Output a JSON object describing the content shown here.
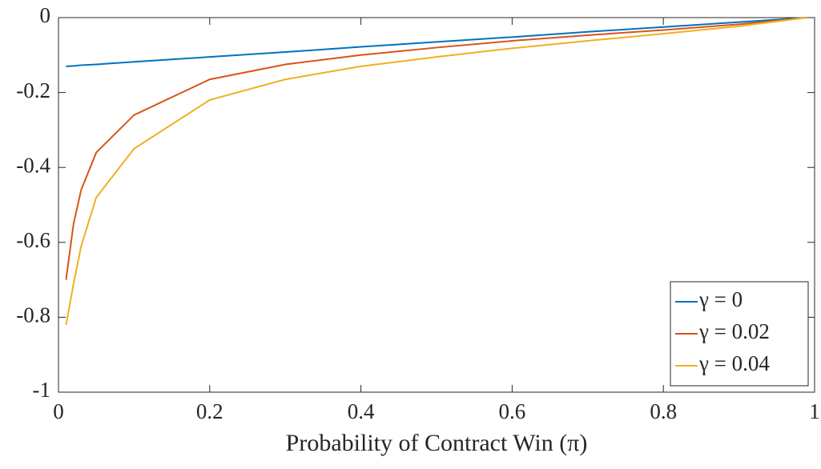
{
  "chart_data": {
    "type": "line",
    "xlabel": "Probability of Contract Win (π)",
    "x": [
      0.01,
      0.02,
      0.03,
      0.05,
      0.1,
      0.2,
      0.3,
      0.4,
      0.5,
      0.6,
      0.7,
      0.8,
      0.9,
      0.99
    ],
    "series": [
      {
        "name": "γ = 0",
        "color": "#0072bd",
        "values": [
          -0.13,
          -0.129,
          -0.127,
          -0.125,
          -0.118,
          -0.105,
          -0.092,
          -0.078,
          -0.065,
          -0.052,
          -0.038,
          -0.025,
          -0.012,
          0
        ]
      },
      {
        "name": "γ = 0.02",
        "color": "#d95319",
        "values": [
          -0.7,
          -0.55,
          -0.46,
          -0.36,
          -0.26,
          -0.165,
          -0.125,
          -0.1,
          -0.08,
          -0.062,
          -0.047,
          -0.033,
          -0.018,
          0
        ]
      },
      {
        "name": "γ = 0.04",
        "color": "#edb120",
        "values": [
          -0.82,
          -0.71,
          -0.61,
          -0.48,
          -0.35,
          -0.22,
          -0.165,
          -0.13,
          -0.105,
          -0.082,
          -0.062,
          -0.043,
          -0.023,
          0
        ]
      }
    ],
    "xlim": [
      0,
      1
    ],
    "xticks": [
      0,
      0.2,
      0.4,
      0.6,
      0.8,
      1
    ],
    "ylim": [
      -1,
      0
    ],
    "yticks": [
      -1,
      -0.8,
      -0.6,
      -0.4,
      -0.2,
      0
    ],
    "legend": "lower right"
  }
}
